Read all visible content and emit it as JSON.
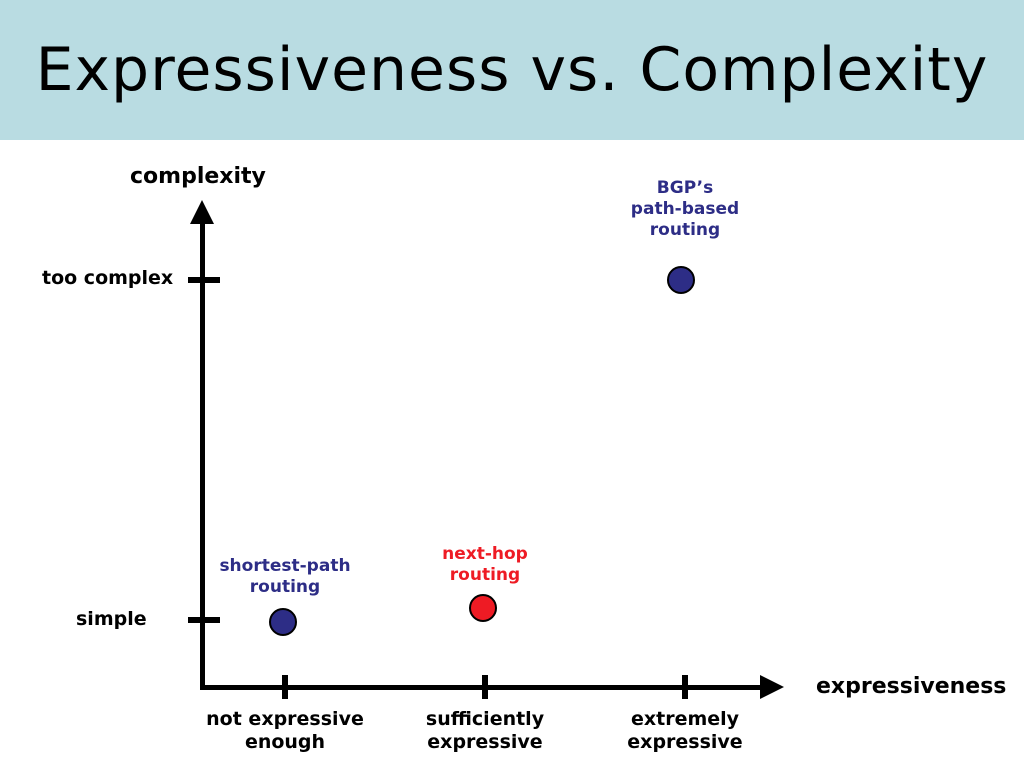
{
  "header": {
    "title": "Expressiveness vs. Complexity",
    "background_color": "#b9dce2"
  },
  "axes": {
    "y_title": "complexity",
    "x_title": "expressiveness",
    "y_tick_labels": {
      "too_complex": "too complex",
      "simple": "simple"
    },
    "x_tick_labels": {
      "not_expressive": "not expressive\nenough",
      "sufficiently": "sufficiently\nexpressive",
      "extremely": "extremely\nexpressive"
    }
  },
  "points": {
    "bgp": {
      "label": "BGP’s\npath-based\nrouting",
      "color": "#2d2d86"
    },
    "shortest_path": {
      "label": "shortest-path\nrouting",
      "color": "#2d2d86"
    },
    "next_hop": {
      "label": "next-hop\nrouting",
      "color": "#ee1b24"
    }
  },
  "colors": {
    "navy": "#2d2d86",
    "red": "#ee1b24",
    "axis": "#000000",
    "header_bg": "#b9dce2"
  },
  "chart_data": {
    "type": "scatter",
    "title": "Expressiveness vs. Complexity",
    "xlabel": "expressiveness",
    "ylabel": "complexity",
    "x_categories": [
      "not expressive enough",
      "sufficiently expressive",
      "extremely expressive"
    ],
    "y_categories": [
      "simple",
      "too complex"
    ],
    "grid": false,
    "legend": "none",
    "points": [
      {
        "label": "BGP's path-based routing",
        "x": "extremely expressive",
        "y": "too complex",
        "color": "#2d2d86"
      },
      {
        "label": "shortest-path routing",
        "x": "not expressive enough",
        "y": "simple",
        "color": "#2d2d86"
      },
      {
        "label": "next-hop routing",
        "x": "sufficiently expressive",
        "y": "simple",
        "color": "#ee1b24"
      }
    ]
  }
}
